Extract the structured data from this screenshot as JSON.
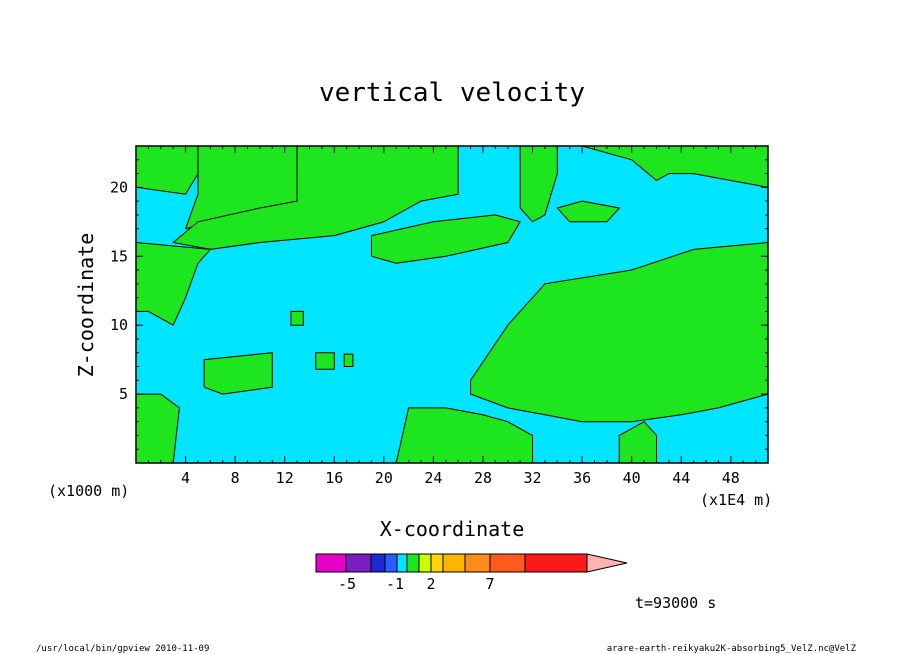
{
  "chart_data": {
    "type": "heatmap",
    "title": "vertical velocity",
    "xlabel": "X-coordinate",
    "ylabel": "Z-coordinate",
    "x_units": "(x1E4 m)",
    "z_units": "(x1000 m)",
    "xlim": [
      0,
      51
    ],
    "ylim": [
      0,
      23
    ],
    "x_ticks": [
      4,
      8,
      12,
      16,
      20,
      24,
      28,
      32,
      36,
      40,
      44,
      48
    ],
    "y_ticks": [
      5,
      10,
      15,
      20
    ],
    "time_label": "t=93000 s",
    "colorbar": {
      "colors": [
        "#e600c8",
        "#7a1fbf",
        "#1a2ad6",
        "#2a5cff",
        "#00e5ff",
        "#1ee61e",
        "#c8ff00",
        "#ffd400",
        "#ffb400",
        "#ff8c1a",
        "#ff5a1e",
        "#ff1a1a",
        "#ff8080",
        "#ffb3b3"
      ],
      "tick_labels": [
        {
          "text": "-5",
          "value": -5
        },
        {
          "text": "-1",
          "value": -1
        },
        {
          "text": "2",
          "value": 2
        },
        {
          "text": "7",
          "value": 7
        }
      ]
    },
    "fields": {
      "background_color": "#00e5ff",
      "background_level": "weak downdraft / near zero",
      "region_color": "#1ee61e",
      "region_level": "weak updraft",
      "regions": [
        {
          "name": "upper-left",
          "points": [
            [
              0,
              23
            ],
            [
              5,
              23
            ],
            [
              5,
              21
            ],
            [
              4,
              19.5
            ],
            [
              0,
              20
            ]
          ]
        },
        {
          "name": "upper-band",
          "points": [
            [
              5,
              23
            ],
            [
              13,
              23
            ],
            [
              13,
              21
            ],
            [
              14,
              20.5
            ],
            [
              13,
              18.5
            ],
            [
              10,
              18
            ],
            [
              6,
              17.5
            ],
            [
              4,
              17
            ],
            [
              5,
              19.5
            ]
          ]
        },
        {
          "name": "top-mid-band",
          "points": [
            [
              13,
              23
            ],
            [
              26,
              23
            ],
            [
              26,
              19.5
            ],
            [
              23,
              19
            ],
            [
              20,
              17.5
            ],
            [
              16,
              16.5
            ],
            [
              10,
              16
            ],
            [
              6,
              15.5
            ],
            [
              3,
              16
            ],
            [
              5,
              17.5
            ],
            [
              10,
              18.5
            ],
            [
              13,
              19
            ]
          ]
        },
        {
          "name": "left-middle",
          "points": [
            [
              0,
              16
            ],
            [
              6,
              15.5
            ],
            [
              5,
              14.5
            ],
            [
              4,
              12
            ],
            [
              3,
              10
            ],
            [
              1,
              11
            ],
            [
              0,
              11
            ]
          ]
        },
        {
          "name": "mid-right-band",
          "points": [
            [
              19,
              16.5
            ],
            [
              24,
              17.5
            ],
            [
              29,
              18
            ],
            [
              31,
              17.5
            ],
            [
              30,
              16
            ],
            [
              25,
              15
            ],
            [
              21,
              14.5
            ],
            [
              19,
              15
            ]
          ]
        },
        {
          "name": "right-upper-strips",
          "points": [
            [
              31,
              23
            ],
            [
              34,
              23
            ],
            [
              34,
              21
            ],
            [
              33,
              18
            ],
            [
              32,
              17.5
            ],
            [
              31,
              18.5
            ],
            [
              31,
              20
            ]
          ]
        },
        {
          "name": "right-top",
          "points": [
            [
              36,
              23
            ],
            [
              51,
              23
            ],
            [
              51,
              20
            ],
            [
              48,
              20.5
            ],
            [
              45,
              21
            ],
            [
              43,
              21
            ],
            [
              42,
              20.5
            ],
            [
              40,
              22
            ]
          ]
        },
        {
          "name": "cloud-36",
          "points": [
            [
              34,
              18.5
            ],
            [
              36,
              19
            ],
            [
              39,
              18.5
            ],
            [
              38,
              17.5
            ],
            [
              35,
              17.5
            ]
          ]
        },
        {
          "name": "blob-13",
          "points": [
            [
              12.5,
              11
            ],
            [
              13.5,
              11
            ],
            [
              13.5,
              10
            ],
            [
              12.5,
              10
            ]
          ]
        },
        {
          "name": "blob-15",
          "points": [
            [
              14.5,
              8
            ],
            [
              16,
              8
            ],
            [
              16,
              6.8
            ],
            [
              14.5,
              6.8
            ]
          ]
        },
        {
          "name": "blob-17",
          "points": [
            [
              16.8,
              7.9
            ],
            [
              17.5,
              7.9
            ],
            [
              17.5,
              7
            ],
            [
              16.8,
              7
            ]
          ]
        },
        {
          "name": "lower-left-strip",
          "points": [
            [
              5.5,
              7.5
            ],
            [
              11,
              8
            ],
            [
              11,
              5.5
            ],
            [
              7,
              5
            ],
            [
              5.5,
              5.5
            ]
          ]
        },
        {
          "name": "bottom-left",
          "points": [
            [
              0,
              5
            ],
            [
              2,
              5
            ],
            [
              3.5,
              4
            ],
            [
              3,
              0
            ],
            [
              0,
              0
            ]
          ]
        },
        {
          "name": "bottom-middle",
          "points": [
            [
              21,
              0
            ],
            [
              32,
              0
            ],
            [
              32,
              2
            ],
            [
              30,
              3
            ],
            [
              28,
              3.5
            ],
            [
              25,
              4
            ],
            [
              22,
              4
            ]
          ]
        },
        {
          "name": "large-right",
          "points": [
            [
              27,
              6
            ],
            [
              30,
              10
            ],
            [
              33,
              13
            ],
            [
              40,
              14
            ],
            [
              45,
              15.5
            ],
            [
              51,
              16
            ],
            [
              51,
              5
            ],
            [
              47,
              4
            ],
            [
              44,
              3.5
            ],
            [
              40,
              3
            ],
            [
              36,
              3
            ],
            [
              33,
              3.5
            ],
            [
              30,
              4
            ],
            [
              27,
              5
            ]
          ]
        },
        {
          "name": "bottom-right-lobe",
          "points": [
            [
              39,
              0
            ],
            [
              42,
              0
            ],
            [
              42,
              2
            ],
            [
              41,
              3
            ],
            [
              39,
              2
            ]
          ]
        }
      ]
    }
  },
  "footer": {
    "left": "/usr/local/bin/gpview  2010-11-09",
    "right": "arare-earth-reikyaku2K-absorbing5_VelZ.nc@VelZ"
  }
}
